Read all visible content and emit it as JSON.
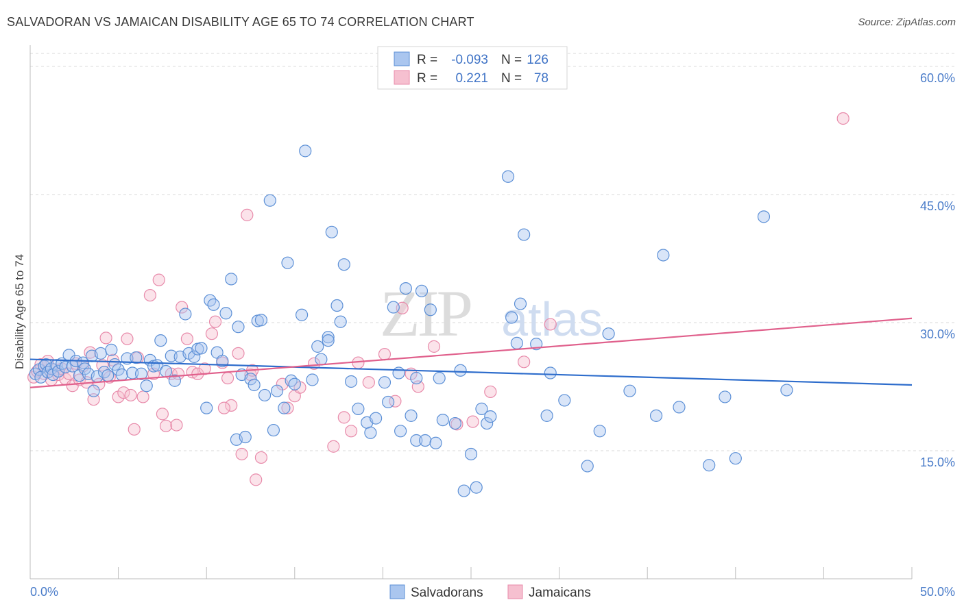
{
  "title": "SALVADORAN VS JAMAICAN DISABILITY AGE 65 TO 74 CORRELATION CHART",
  "source": "Source: ZipAtlas.com",
  "watermark": {
    "zip": "ZIP",
    "atlas": "atlas"
  },
  "colors": {
    "salvadoran_fill": "#aac6ef",
    "salvadoran_stroke": "#5b8fd6",
    "salvadoran_line": "#2e6dcc",
    "jamaican_fill": "#f6c0d0",
    "jamaican_stroke": "#e88aaa",
    "jamaican_line": "#e0608c",
    "axis_label": "#4a7cc9",
    "grid": "#d9d9d9"
  },
  "legend": {
    "rows": [
      {
        "r_label": "R =",
        "r_value": "-0.093",
        "n_label": "N =",
        "n_value": "126"
      },
      {
        "r_label": "R =",
        "r_value": "0.221",
        "n_label": "N =",
        "n_value": "78"
      }
    ]
  },
  "bottom_legend": [
    "Salvadorans",
    "Jamaicans"
  ],
  "chart_data": {
    "type": "scatter",
    "title": "SALVADORAN VS JAMAICAN DISABILITY AGE 65 TO 74 CORRELATION CHART",
    "xlabel": "",
    "ylabel": "Disability Age 65 to 74",
    "xlim": [
      0,
      50
    ],
    "ylim": [
      0,
      62
    ],
    "x_tick_labels": [
      "0.0%",
      "50.0%"
    ],
    "y_ticks": [
      15,
      30,
      45,
      60
    ],
    "y_tick_labels": [
      "15.0%",
      "30.0%",
      "45.0%",
      "60.0%"
    ],
    "grid": true,
    "legend_position": "top-center",
    "series": [
      {
        "name": "Salvadorans",
        "r": -0.093,
        "n": 126,
        "trend": {
          "x": [
            0,
            50
          ],
          "y": [
            25.7,
            22.7
          ]
        },
        "points": [
          [
            0.3,
            24.0
          ],
          [
            0.5,
            24.5
          ],
          [
            0.6,
            23.6
          ],
          [
            0.8,
            24.9
          ],
          [
            0.9,
            25.1
          ],
          [
            1.0,
            24.2
          ],
          [
            1.2,
            24.6
          ],
          [
            1.3,
            23.9
          ],
          [
            1.5,
            25.0
          ],
          [
            1.6,
            24.3
          ],
          [
            1.8,
            25.2
          ],
          [
            2.0,
            24.8
          ],
          [
            2.2,
            26.2
          ],
          [
            2.4,
            24.9
          ],
          [
            2.6,
            25.5
          ],
          [
            2.8,
            23.8
          ],
          [
            3.0,
            25.3
          ],
          [
            3.1,
            24.6
          ],
          [
            3.3,
            24.0
          ],
          [
            3.5,
            26.1
          ],
          [
            3.6,
            22.0
          ],
          [
            3.8,
            23.7
          ],
          [
            4.0,
            26.4
          ],
          [
            4.2,
            24.2
          ],
          [
            4.4,
            23.8
          ],
          [
            4.6,
            26.8
          ],
          [
            4.8,
            25.1
          ],
          [
            5.0,
            24.5
          ],
          [
            5.2,
            23.9
          ],
          [
            5.5,
            25.8
          ],
          [
            5.8,
            24.1
          ],
          [
            6.0,
            25.9
          ],
          [
            6.3,
            24.0
          ],
          [
            6.6,
            22.6
          ],
          [
            6.8,
            25.6
          ],
          [
            7.0,
            24.9
          ],
          [
            7.2,
            25.0
          ],
          [
            7.4,
            27.9
          ],
          [
            7.7,
            24.3
          ],
          [
            8.0,
            26.1
          ],
          [
            8.2,
            23.2
          ],
          [
            8.5,
            26.0
          ],
          [
            8.8,
            31.0
          ],
          [
            9.0,
            26.4
          ],
          [
            9.3,
            26.0
          ],
          [
            9.5,
            26.9
          ],
          [
            9.7,
            27.0
          ],
          [
            10.0,
            20.0
          ],
          [
            10.2,
            32.6
          ],
          [
            10.4,
            32.1
          ],
          [
            10.6,
            26.5
          ],
          [
            10.9,
            25.5
          ],
          [
            11.1,
            31.1
          ],
          [
            11.4,
            35.1
          ],
          [
            11.7,
            16.3
          ],
          [
            11.8,
            29.5
          ],
          [
            12.0,
            23.9
          ],
          [
            12.2,
            16.6
          ],
          [
            12.5,
            23.4
          ],
          [
            12.7,
            22.7
          ],
          [
            12.9,
            30.2
          ],
          [
            13.1,
            30.3
          ],
          [
            13.3,
            21.5
          ],
          [
            13.6,
            44.3
          ],
          [
            13.8,
            17.4
          ],
          [
            14.0,
            22.0
          ],
          [
            14.4,
            20.0
          ],
          [
            14.6,
            37.0
          ],
          [
            14.8,
            23.2
          ],
          [
            15.0,
            22.8
          ],
          [
            15.4,
            30.9
          ],
          [
            15.6,
            50.1
          ],
          [
            16.0,
            23.3
          ],
          [
            16.3,
            27.2
          ],
          [
            16.5,
            25.7
          ],
          [
            16.9,
            28.3
          ],
          [
            17.1,
            40.6
          ],
          [
            17.4,
            32.0
          ],
          [
            17.6,
            30.1
          ],
          [
            17.8,
            36.8
          ],
          [
            18.2,
            23.1
          ],
          [
            18.6,
            19.9
          ],
          [
            19.1,
            18.3
          ],
          [
            19.3,
            17.1
          ],
          [
            19.6,
            18.8
          ],
          [
            20.1,
            23.0
          ],
          [
            20.3,
            20.7
          ],
          [
            20.6,
            31.8
          ],
          [
            20.9,
            24.1
          ],
          [
            21.0,
            17.3
          ],
          [
            21.3,
            34.0
          ],
          [
            21.6,
            19.1
          ],
          [
            21.9,
            16.2
          ],
          [
            22.2,
            33.7
          ],
          [
            22.4,
            16.2
          ],
          [
            22.7,
            31.5
          ],
          [
            23.0,
            15.9
          ],
          [
            23.2,
            23.5
          ],
          [
            23.4,
            18.6
          ],
          [
            24.1,
            18.2
          ],
          [
            24.4,
            24.4
          ],
          [
            24.6,
            10.3
          ],
          [
            25.0,
            14.6
          ],
          [
            25.3,
            10.7
          ],
          [
            25.6,
            19.9
          ],
          [
            25.9,
            18.2
          ],
          [
            26.1,
            19.0
          ],
          [
            27.1,
            47.1
          ],
          [
            27.3,
            30.6
          ],
          [
            27.6,
            27.6
          ],
          [
            27.8,
            32.2
          ],
          [
            28.0,
            40.3
          ],
          [
            28.7,
            27.5
          ],
          [
            29.3,
            19.1
          ],
          [
            29.5,
            24.1
          ],
          [
            30.3,
            20.9
          ],
          [
            31.6,
            13.2
          ],
          [
            32.3,
            17.3
          ],
          [
            32.8,
            28.7
          ],
          [
            34.0,
            22.0
          ],
          [
            35.5,
            19.1
          ],
          [
            35.9,
            37.9
          ],
          [
            36.8,
            20.1
          ],
          [
            38.5,
            13.3
          ],
          [
            39.4,
            21.3
          ],
          [
            40.0,
            14.1
          ],
          [
            41.6,
            42.4
          ],
          [
            42.9,
            22.1
          ],
          [
            21.9,
            23.5
          ],
          [
            16.9,
            27.9
          ]
        ]
      },
      {
        "name": "Jamaicans",
        "r": 0.221,
        "n": 78,
        "trend": {
          "x": [
            0,
            50
          ],
          "y": [
            22.4,
            30.5
          ]
        },
        "points": [
          [
            0.2,
            23.6
          ],
          [
            0.4,
            24.3
          ],
          [
            0.6,
            25.1
          ],
          [
            0.8,
            24.0
          ],
          [
            1.0,
            25.5
          ],
          [
            1.2,
            23.3
          ],
          [
            1.4,
            24.5
          ],
          [
            1.6,
            23.9
          ],
          [
            1.8,
            24.6
          ],
          [
            2.0,
            23.4
          ],
          [
            2.2,
            24.0
          ],
          [
            2.4,
            22.6
          ],
          [
            2.6,
            25.2
          ],
          [
            2.8,
            23.3
          ],
          [
            3.0,
            24.9
          ],
          [
            3.2,
            23.0
          ],
          [
            3.4,
            26.5
          ],
          [
            3.6,
            21.0
          ],
          [
            3.9,
            22.8
          ],
          [
            4.1,
            25.0
          ],
          [
            4.3,
            28.2
          ],
          [
            4.5,
            23.6
          ],
          [
            4.7,
            25.6
          ],
          [
            5.0,
            21.3
          ],
          [
            5.3,
            21.8
          ],
          [
            5.5,
            28.1
          ],
          [
            5.7,
            21.5
          ],
          [
            5.9,
            17.5
          ],
          [
            6.1,
            25.9
          ],
          [
            6.4,
            21.3
          ],
          [
            6.8,
            33.2
          ],
          [
            7.0,
            24.0
          ],
          [
            7.3,
            35.0
          ],
          [
            7.5,
            19.3
          ],
          [
            7.7,
            17.9
          ],
          [
            8.0,
            24.0
          ],
          [
            8.3,
            18.0
          ],
          [
            8.6,
            31.8
          ],
          [
            8.9,
            28.1
          ],
          [
            9.2,
            24.2
          ],
          [
            9.5,
            24.0
          ],
          [
            9.9,
            24.6
          ],
          [
            10.3,
            28.7
          ],
          [
            10.5,
            30.1
          ],
          [
            10.9,
            25.3
          ],
          [
            11.2,
            23.5
          ],
          [
            11.4,
            20.3
          ],
          [
            11.8,
            26.4
          ],
          [
            12.0,
            14.6
          ],
          [
            12.3,
            42.6
          ],
          [
            12.5,
            23.9
          ],
          [
            12.8,
            11.6
          ],
          [
            13.1,
            14.2
          ],
          [
            14.3,
            22.8
          ],
          [
            14.6,
            20.0
          ],
          [
            15.0,
            21.4
          ],
          [
            15.3,
            22.4
          ],
          [
            16.1,
            25.2
          ],
          [
            17.2,
            15.5
          ],
          [
            17.8,
            18.9
          ],
          [
            18.2,
            17.3
          ],
          [
            18.6,
            25.3
          ],
          [
            19.2,
            23.0
          ],
          [
            20.1,
            26.3
          ],
          [
            20.7,
            20.8
          ],
          [
            21.1,
            31.7
          ],
          [
            21.6,
            24.0
          ],
          [
            22.0,
            22.5
          ],
          [
            22.9,
            27.2
          ],
          [
            24.2,
            18.1
          ],
          [
            25.1,
            18.4
          ],
          [
            26.1,
            21.9
          ],
          [
            28.0,
            25.4
          ],
          [
            29.5,
            29.8
          ],
          [
            46.1,
            53.9
          ],
          [
            11.0,
            20.0
          ],
          [
            12.6,
            24.4
          ],
          [
            8.4,
            24.0
          ]
        ]
      }
    ]
  }
}
